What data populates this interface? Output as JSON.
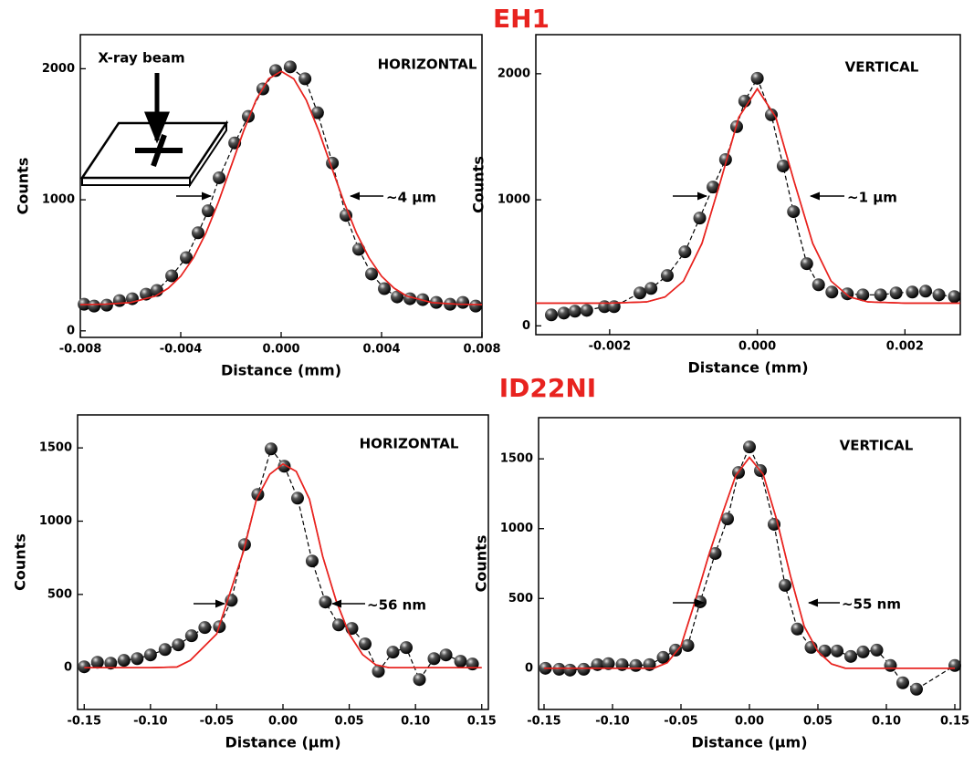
{
  "section_titles": [
    "EH1",
    "ID22NI"
  ],
  "chart_data": [
    {
      "type": "scatter",
      "annotations": [
        "HORIZONTAL",
        "~4 μm",
        "X-ray beam"
      ],
      "x_label": "Distance (mm)",
      "y_label": "Counts",
      "xlim": [
        -0.008,
        0.008
      ],
      "ylim": [
        -50,
        2260
      ],
      "xticks": [
        -0.008,
        -0.004,
        {
          "value": 0,
          "label": "0.000"
        },
        0.004,
        0.008
      ],
      "yticks": [
        0,
        1000,
        2000
      ],
      "series": [
        {
          "color": "#000000",
          "marker": true,
          "line_style": "dashed",
          "x": [
            -0.00785,
            -0.00745,
            -0.00695,
            -0.00644,
            -0.00593,
            -0.00538,
            -0.00495,
            -0.00436,
            -0.00378,
            -0.00331,
            -0.00291,
            -0.00247,
            -0.00185,
            -0.00131,
            -0.00073,
            -0.00022,
            0.00036,
            0.00095,
            0.00145,
            0.00204,
            0.00258,
            0.00309,
            0.0036,
            0.00411,
            0.00462,
            0.00513,
            0.00564,
            0.00618,
            0.00673,
            0.00724,
            0.00775
          ],
          "values": [
            203,
            189,
            196,
            231,
            245,
            280,
            308,
            420,
            559,
            748,
            916,
            1168,
            1434,
            1636,
            1846,
            1986,
            2014,
            1923,
            1664,
            1280,
            881,
            622,
            434,
            322,
            259,
            245,
            238,
            217,
            203,
            217,
            189
          ]
        },
        {
          "color": "#e8231f",
          "marker": false,
          "line_style": "solid",
          "x": [
            -0.008,
            -0.007,
            -0.006,
            -0.005,
            -0.0045,
            -0.004,
            -0.0035,
            -0.003,
            -0.0025,
            -0.002,
            -0.0015,
            -0.001,
            -0.0005,
            0,
            0.0005,
            0.001,
            0.0015,
            0.002,
            0.0025,
            0.003,
            0.0035,
            0.004,
            0.0045,
            0.005,
            0.006,
            0.007,
            0.008
          ],
          "values": [
            200,
            203,
            216,
            266,
            325,
            417,
            556,
            745,
            983,
            1252,
            1524,
            1761,
            1923,
            1980,
            1923,
            1761,
            1524,
            1252,
            983,
            745,
            556,
            417,
            325,
            266,
            216,
            203,
            200
          ]
        }
      ]
    },
    {
      "type": "scatter",
      "annotations": [
        "VERTICAL",
        "~1 μm"
      ],
      "x_label": "Distance (mm)",
      "y_label": "Counts",
      "xlim": [
        -0.003,
        0.00275
      ],
      "ylim": [
        -70,
        2310
      ],
      "xticks": [
        -0.002,
        {
          "value": 0,
          "label": "0.000"
        },
        0.002
      ],
      "yticks": [
        0,
        1000,
        2000
      ],
      "series": [
        {
          "color": "#000000",
          "marker": true,
          "line_style": "dashed",
          "x": [
            -0.00279,
            -0.00262,
            -0.00247,
            -0.00231,
            -0.00207,
            -0.00194,
            -0.00159,
            -0.00144,
            -0.00122,
            -0.00098,
            -0.00078,
            -0.0006,
            -0.00043,
            -0.00028,
            -0.00017,
            0,
            0.00019,
            0.00035,
            0.00049,
            0.00067,
            0.00083,
            0.00101,
            0.00122,
            0.00143,
            0.00167,
            0.00188,
            0.0021,
            0.00228,
            0.00246,
            0.00267
          ],
          "values": [
            87,
            101,
            116,
            123,
            152,
            152,
            261,
            297,
            399,
            587,
            855,
            1101,
            1319,
            1580,
            1783,
            1964,
            1674,
            1268,
            906,
            493,
            326,
            268,
            254,
            246,
            246,
            261,
            268,
            275,
            246,
            232
          ]
        },
        {
          "color": "#e8231f",
          "marker": false,
          "line_style": "solid",
          "x": [
            -0.003,
            -0.002,
            -0.0015,
            -0.00125,
            -0.001,
            -0.00075,
            -0.0005,
            -0.00025,
            0,
            0.00025,
            0.0005,
            0.00075,
            0.001,
            0.00125,
            0.0015,
            0.002,
            0.00275
          ],
          "values": [
            180,
            180,
            190,
            229,
            355,
            654,
            1144,
            1655,
            1880,
            1655,
            1144,
            654,
            355,
            229,
            190,
            180,
            180
          ]
        }
      ]
    },
    {
      "type": "scatter",
      "annotations": [
        "HORIZONTAL",
        "~56 nm"
      ],
      "x_label": "Distance (μm)",
      "y_label": "Counts",
      "xlim": [
        -0.155,
        0.155
      ],
      "ylim": [
        -285,
        1725
      ],
      "xticks": [
        -0.15,
        {
          "value": -0.1,
          "label": "-0.10"
        },
        -0.05,
        {
          "value": 0,
          "label": "0.00"
        },
        0.05,
        {
          "value": 0.1,
          "label": "0.10"
        },
        0.15
      ],
      "yticks": [
        0,
        500,
        1000,
        1500
      ],
      "series": [
        {
          "color": "#000000",
          "marker": true,
          "line_style": "dashed",
          "x": [
            -0.15,
            -0.14,
            -0.13,
            -0.12,
            -0.11,
            -0.1,
            -0.089,
            -0.079,
            -0.069,
            -0.059,
            -0.048,
            -0.039,
            -0.029,
            -0.019,
            -0.009,
            0.001,
            0.011,
            0.022,
            0.032,
            0.042,
            0.052,
            0.062,
            0.072,
            0.083,
            0.093,
            0.103,
            0.114,
            0.123,
            0.134,
            0.143
          ],
          "values": [
            6,
            37,
            31,
            50,
            62,
            87,
            124,
            156,
            218,
            274,
            280,
            460,
            840,
            1182,
            1493,
            1375,
            1157,
            728,
            448,
            292,
            268,
            162,
            -25,
            106,
            137,
            -81,
            62,
            87,
            44,
            25
          ]
        },
        {
          "color": "#e8231f",
          "marker": false,
          "line_style": "solid",
          "x": [
            -0.15,
            -0.1,
            -0.08,
            -0.07,
            -0.05,
            -0.03,
            -0.02,
            -0.01,
            0,
            0.01,
            0.02,
            0.03,
            0.04,
            0.05,
            0.06,
            0.07,
            0.08,
            0.15
          ],
          "values": [
            0,
            0,
            5,
            50,
            230,
            790,
            1150,
            1320,
            1390,
            1340,
            1150,
            760,
            460,
            230,
            90,
            20,
            0,
            0
          ]
        }
      ]
    },
    {
      "type": "scatter",
      "annotations": [
        "VERTICAL",
        "~55 nm"
      ],
      "x_label": "Distance (μm)",
      "y_label": "Counts",
      "xlim": [
        -0.154,
        0.154
      ],
      "ylim": [
        -295,
        1795
      ],
      "xticks": [
        -0.15,
        {
          "value": -0.1,
          "label": "-0.10"
        },
        -0.05,
        {
          "value": 0,
          "label": "0.00"
        },
        0.05,
        {
          "value": 0.1,
          "label": "0.10"
        },
        0.15
      ],
      "yticks": [
        0,
        500,
        1000,
        1500
      ],
      "series": [
        {
          "color": "#000000",
          "marker": true,
          "line_style": "dashed",
          "x": [
            -0.149,
            -0.139,
            -0.131,
            -0.121,
            -0.111,
            -0.103,
            -0.093,
            -0.083,
            -0.073,
            -0.063,
            -0.054,
            -0.045,
            -0.036,
            -0.025,
            -0.016,
            -0.008,
            0,
            0.008,
            0.018,
            0.026,
            0.035,
            0.045,
            0.055,
            0.064,
            0.074,
            0.083,
            0.093,
            0.103,
            0.112,
            0.122,
            0.15
          ],
          "values": [
            0,
            -7,
            -13,
            -7,
            26,
            33,
            26,
            20,
            26,
            78,
            130,
            163,
            476,
            822,
            1070,
            1402,
            1585,
            1416,
            1031,
            594,
            281,
            150,
            124,
            124,
            85,
            117,
            130,
            20,
            -104,
            -150,
            20
          ]
        },
        {
          "color": "#e8231f",
          "marker": false,
          "line_style": "solid",
          "x": [
            -0.15,
            -0.07,
            -0.06,
            -0.05,
            -0.04,
            -0.03,
            -0.02,
            -0.01,
            0,
            0.01,
            0.02,
            0.03,
            0.04,
            0.05,
            0.06,
            0.07,
            0.15
          ],
          "values": [
            0,
            0,
            40,
            160,
            470,
            800,
            1100,
            1380,
            1510,
            1390,
            1060,
            660,
            300,
            120,
            30,
            0,
            0
          ]
        }
      ]
    }
  ]
}
